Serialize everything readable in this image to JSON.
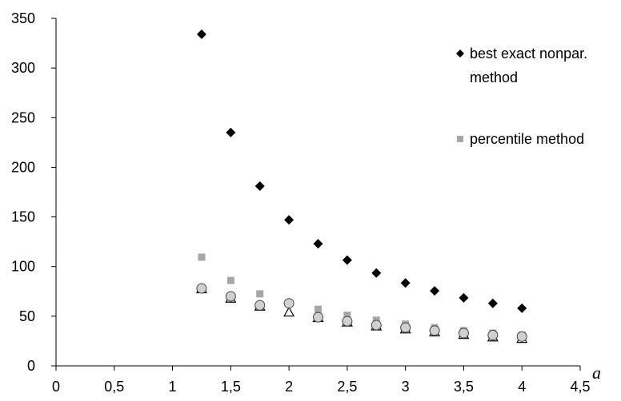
{
  "chart_data": {
    "type": "scatter",
    "x_axis": {
      "label": "a",
      "range": [
        0,
        4.5
      ],
      "ticks": [
        "0",
        "0,5",
        "1",
        "1,5",
        "2",
        "2,5",
        "3",
        "3,5",
        "4",
        "4,5"
      ]
    },
    "y_axis": {
      "range": [
        0,
        350
      ],
      "ticks": [
        "0",
        "50",
        "100",
        "150",
        "200",
        "250",
        "300",
        "350"
      ]
    },
    "grid": false,
    "legend": {
      "placement": "right",
      "entries": [
        "best exact nonpar. method",
        "percentile method"
      ]
    },
    "series": [
      {
        "name": "best exact nonpar. method",
        "marker": "diamond",
        "color": "#000000",
        "points": [
          [
            1.25,
            334
          ],
          [
            1.5,
            235
          ],
          [
            1.75,
            181
          ],
          [
            2.0,
            147
          ],
          [
            2.25,
            123
          ],
          [
            2.5,
            106.5
          ],
          [
            2.75,
            93.5
          ],
          [
            3.0,
            83.5
          ],
          [
            3.25,
            75.5
          ],
          [
            3.5,
            68.5
          ],
          [
            3.75,
            63
          ],
          [
            4.0,
            58
          ]
        ]
      },
      {
        "name": "percentile method",
        "marker": "square",
        "color": "#a6a6a6",
        "points": [
          [
            1.25,
            109.5
          ],
          [
            1.5,
            86
          ],
          [
            1.75,
            72.5
          ],
          [
            2.0,
            63
          ],
          [
            2.25,
            57
          ],
          [
            2.5,
            51
          ],
          [
            2.75,
            46
          ],
          [
            3.0,
            42
          ],
          [
            3.25,
            38.5
          ],
          [
            3.5,
            35.5
          ],
          [
            3.75,
            33
          ],
          [
            4.0,
            31
          ]
        ]
      },
      {
        "marker": "triangle",
        "color": "#000000",
        "points": [
          [
            1.25,
            77.5
          ],
          [
            1.5,
            68
          ],
          [
            1.75,
            60
          ],
          [
            2.0,
            54
          ],
          [
            2.25,
            48.5
          ],
          [
            2.5,
            44
          ],
          [
            2.75,
            40
          ],
          [
            3.0,
            37
          ],
          [
            3.25,
            34
          ],
          [
            3.5,
            31.5
          ],
          [
            3.75,
            29
          ],
          [
            4.0,
            27.5
          ]
        ]
      },
      {
        "marker": "circle",
        "color": "#d0d0d0",
        "points": [
          [
            1.25,
            78
          ],
          [
            1.5,
            70
          ],
          [
            1.75,
            61
          ],
          [
            2.0,
            63
          ],
          [
            2.25,
            49
          ],
          [
            2.5,
            45
          ],
          [
            2.75,
            41
          ],
          [
            3.0,
            38.5
          ],
          [
            3.25,
            35.5
          ],
          [
            3.5,
            33
          ],
          [
            3.75,
            31
          ],
          [
            4.0,
            29.5
          ]
        ]
      }
    ]
  }
}
